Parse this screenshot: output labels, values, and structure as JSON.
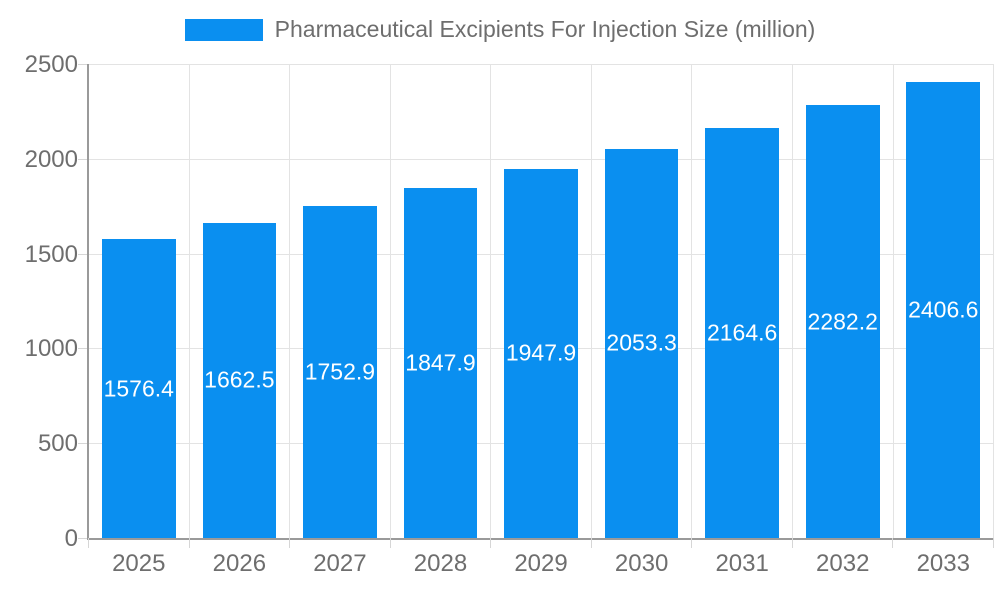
{
  "chart_data": {
    "type": "bar",
    "title": "Pharmaceutical Excipients For Injection Size (million)",
    "categories": [
      "2025",
      "2026",
      "2027",
      "2028",
      "2029",
      "2030",
      "2031",
      "2032",
      "2033"
    ],
    "values": [
      1576.4,
      1662.5,
      1752.9,
      1847.9,
      1947.9,
      2053.3,
      2164.6,
      2282.2,
      2406.6
    ],
    "series_name": "Pharmaceutical Excipients For Injection Size (million)",
    "xlabel": "",
    "ylabel": "",
    "ylim": [
      0,
      2500
    ],
    "y_ticks": [
      0,
      500,
      1000,
      1500,
      2000,
      2500
    ],
    "grid": "on",
    "legend_position": "top-center",
    "value_labels": "centered-inside-bars"
  },
  "colors": {
    "bar": "#0a8ff0",
    "text": "#6e6e6e",
    "grid": "#e3e3e3",
    "axis": "#9a9a9a",
    "tick": "#d6d6d6",
    "value_label": "#ffffff",
    "background": "#ffffff"
  }
}
